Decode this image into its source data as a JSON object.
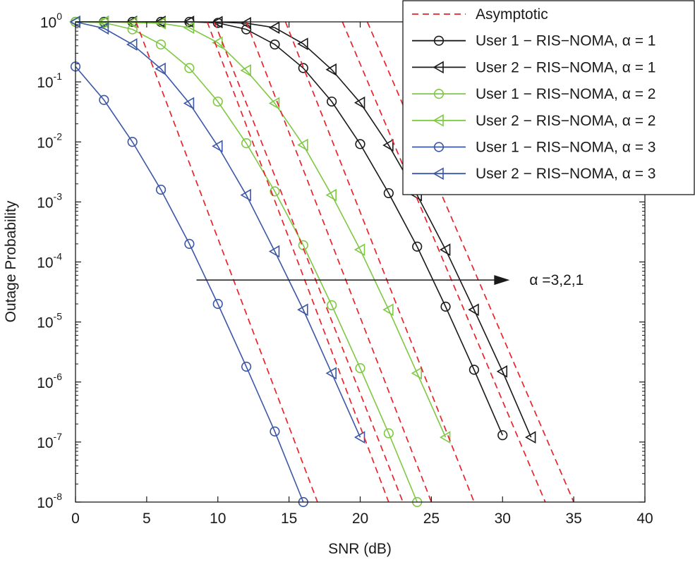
{
  "chart_data": {
    "type": "line",
    "xlabel": "SNR (dB)",
    "ylabel": "Outage Probability",
    "xlim": [
      0,
      40
    ],
    "ylim_log10": [
      -8,
      0
    ],
    "y_scale": "log",
    "grid": false,
    "legend_position": "top-right",
    "x_ticks": [
      0,
      5,
      10,
      15,
      20,
      25,
      30,
      35,
      40
    ],
    "y_ticks": [
      {
        "base": "10",
        "exp": "0"
      },
      {
        "base": "10",
        "exp": "-1"
      },
      {
        "base": "10",
        "exp": "-2"
      },
      {
        "base": "10",
        "exp": "-3"
      },
      {
        "base": "10",
        "exp": "-4"
      },
      {
        "base": "10",
        "exp": "-5"
      },
      {
        "base": "10",
        "exp": "-6"
      },
      {
        "base": "10",
        "exp": "-7"
      },
      {
        "base": "10",
        "exp": "-8"
      }
    ],
    "annotation": {
      "text": "α =3,2,1",
      "arrow_from": [
        8.5,
        5e-05
      ],
      "arrow_to": [
        30.5,
        5e-05
      ]
    },
    "series": [
      {
        "name": "Asymptotic",
        "color": "#e8232b",
        "style": "dashed",
        "marker": "none",
        "legend": true,
        "x": [],
        "y": []
      },
      {
        "name": "User 1 − RIS−NOMA, α = 1",
        "color": "#1a1a1a",
        "style": "solid",
        "marker": "circle",
        "legend": true,
        "x": [
          0,
          2,
          4,
          6,
          8,
          10,
          12,
          14,
          16,
          18,
          20,
          22,
          24,
          26,
          28,
          30
        ],
        "y": [
          1,
          1,
          1,
          1,
          1,
          0.96,
          0.75,
          0.42,
          0.17,
          0.047,
          0.0092,
          0.0014,
          0.00018,
          1.8e-05,
          1.6e-06,
          1.3e-07
        ]
      },
      {
        "name": "User 2 − RIS−NOMA, α = 1",
        "color": "#1a1a1a",
        "style": "solid",
        "marker": "triangle-left",
        "legend": true,
        "x": [
          0,
          2,
          4,
          6,
          8,
          10,
          12,
          14,
          16,
          18,
          20,
          22,
          24,
          26,
          28,
          30,
          32
        ],
        "y": [
          1,
          1,
          1,
          1,
          1,
          0.99,
          0.95,
          0.8,
          0.43,
          0.16,
          0.045,
          0.0088,
          0.0013,
          0.00016,
          1.6e-05,
          1.5e-06,
          1.2e-07
        ]
      },
      {
        "name": "User 1 − RIS−NOMA, α = 2",
        "color": "#7fc844",
        "style": "solid",
        "marker": "circle",
        "legend": true,
        "x": [
          0,
          2,
          4,
          6,
          8,
          10,
          12,
          14,
          16,
          18,
          20,
          22,
          24
        ],
        "y": [
          1,
          0.97,
          0.75,
          0.42,
          0.17,
          0.047,
          0.0095,
          0.0015,
          0.00019,
          1.9e-05,
          1.7e-06,
          1.4e-07,
          1e-08
        ]
      },
      {
        "name": "User 2 − RIS−NOMA, α = 2",
        "color": "#7fc844",
        "style": "solid",
        "marker": "triangle-left",
        "legend": true,
        "x": [
          0,
          2,
          4,
          6,
          8,
          10,
          12,
          14,
          16,
          18,
          20,
          22,
          24,
          26
        ],
        "y": [
          1,
          1,
          0.97,
          0.95,
          0.8,
          0.45,
          0.155,
          0.044,
          0.0089,
          0.0013,
          0.00016,
          1.6e-05,
          1.4e-06,
          1.2e-07
        ]
      },
      {
        "name": "User 1 − RIS−NOMA, α = 3",
        "color": "#3b57a6",
        "style": "solid",
        "marker": "circle",
        "legend": true,
        "x": [
          0,
          2,
          4,
          6,
          8,
          10,
          12,
          14,
          16
        ],
        "y": [
          0.18,
          0.05,
          0.01,
          0.0016,
          0.0002,
          2e-05,
          1.8e-06,
          1.5e-07,
          1e-08
        ]
      },
      {
        "name": "User 2 − RIS−NOMA, α = 3",
        "color": "#3b57a6",
        "style": "solid",
        "marker": "triangle-left",
        "legend": true,
        "x": [
          0,
          2,
          4,
          6,
          8,
          10,
          12,
          14,
          16,
          18,
          20
        ],
        "y": [
          1,
          0.78,
          0.42,
          0.165,
          0.044,
          0.0085,
          0.0013,
          0.00015,
          1.6e-05,
          1.4e-06,
          1.2e-07
        ]
      },
      {
        "name": "",
        "color": "#e8232b",
        "style": "dashed",
        "marker": "none",
        "legend": false,
        "x": [
          4.25,
          17
        ],
        "y": [
          1,
          1e-08
        ]
      },
      {
        "name": "",
        "color": "#e8232b",
        "style": "dashed",
        "marker": "none",
        "legend": false,
        "x": [
          9.25,
          22
        ],
        "y": [
          1,
          1e-08
        ]
      },
      {
        "name": "",
        "color": "#e8232b",
        "style": "dashed",
        "marker": "none",
        "legend": false,
        "x": [
          9.75,
          23
        ],
        "y": [
          1,
          1e-08
        ]
      },
      {
        "name": "",
        "color": "#e8232b",
        "style": "dashed",
        "marker": "none",
        "legend": false,
        "x": [
          12,
          25
        ],
        "y": [
          1,
          1e-08
        ]
      },
      {
        "name": "",
        "color": "#e8232b",
        "style": "dashed",
        "marker": "none",
        "legend": false,
        "x": [
          14.75,
          28
        ],
        "y": [
          1,
          1e-08
        ]
      },
      {
        "name": "",
        "color": "#e8232b",
        "style": "dashed",
        "marker": "none",
        "legend": false,
        "x": [
          18.75,
          33
        ],
        "y": [
          1,
          1e-08
        ]
      },
      {
        "name": "",
        "color": "#e8232b",
        "style": "dashed",
        "marker": "none",
        "legend": false,
        "x": [
          20.5,
          35
        ],
        "y": [
          1,
          1e-08
        ]
      }
    ]
  }
}
